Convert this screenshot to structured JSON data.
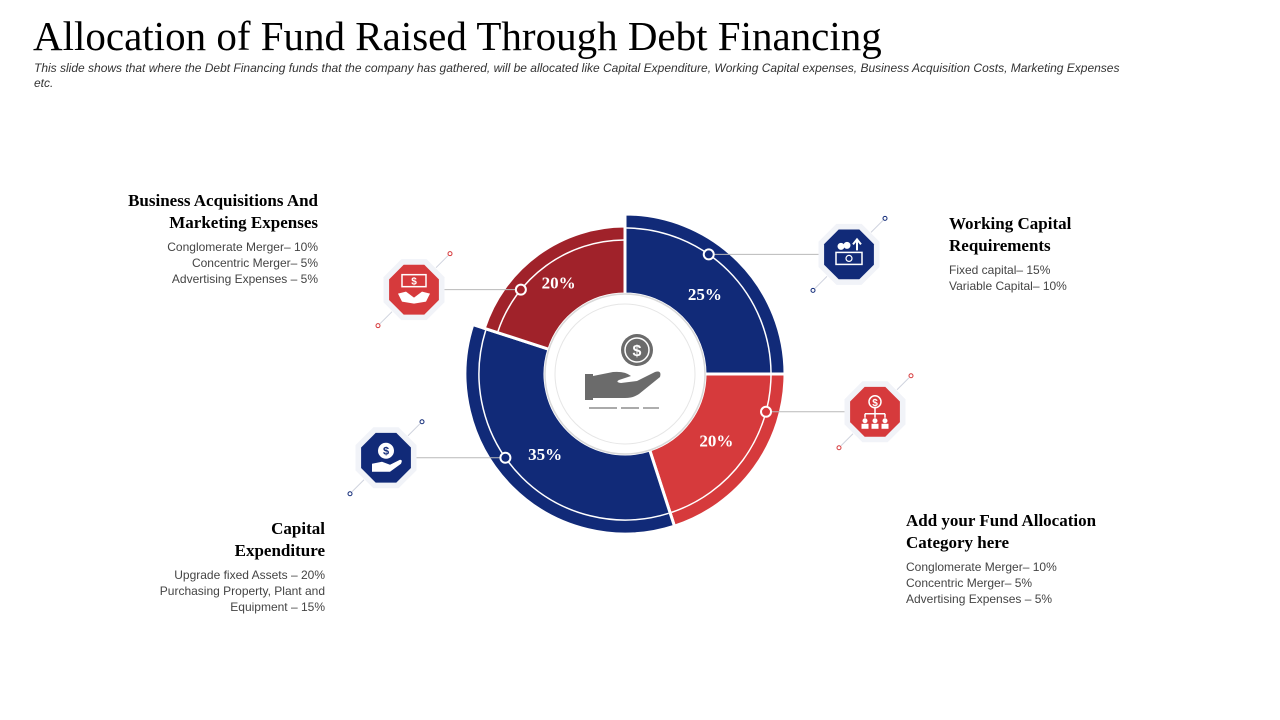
{
  "title": "Allocation of Fund Raised Through Debt Financing",
  "subtitle": "This slide shows that where  the Debt Financing funds that the company has gathered, will be allocated like Capital Expenditure,  Working Capital expenses,  Business Acquisition Costs, Marketing Expenses etc.",
  "colors": {
    "navy": "#112a78",
    "red_dark": "#a0222a",
    "red_light": "#d63a3c",
    "gray": "#6b6b6b"
  },
  "chart_data": {
    "type": "pie",
    "title": "",
    "slices": [
      {
        "label": "Working Capital Requirements",
        "value": 25,
        "value_label": "25%",
        "color": "#112a78",
        "icon": "money-up-icon"
      },
      {
        "label": "Add your Fund Allocation Category here",
        "value": 20,
        "value_label": "20%",
        "color": "#d63a3c",
        "icon": "org-chart-dollar-icon"
      },
      {
        "label": "Capital Expenditure",
        "value": 35,
        "value_label": "35%",
        "color": "#112a78",
        "icon": "hand-coin-icon"
      },
      {
        "label": "Business Acquisitions And Marketing Expenses",
        "value": 20,
        "value_label": "20%",
        "color": "#a0222a",
        "icon": "handshake-dollar-icon"
      }
    ],
    "center_icon": "hand-coin-icon"
  },
  "blocks": {
    "top_left": {
      "head": [
        "Business Acquisitions And",
        "Marketing Expenses"
      ],
      "lines": [
        "Conglomerate Merger– 10%",
        "Concentric Merger– 5%",
        "Advertising Expenses – 5%"
      ]
    },
    "top_right": {
      "head": [
        "Working Capital",
        "Requirements"
      ],
      "lines": [
        "Fixed capital– 15%",
        "Variable Capital– 10%"
      ]
    },
    "bottom_left": {
      "head": [
        "Capital",
        "Expenditure"
      ],
      "lines": [
        "Upgrade fixed Assets – 20%",
        "Purchasing Property, Plant and",
        "Equipment – 15%"
      ]
    },
    "bottom_right": {
      "head": [
        "Add your Fund Allocation",
        "Category here"
      ],
      "lines": [
        "Conglomerate Merger– 10%",
        "Concentric Merger– 5%",
        "Advertising Expenses – 5%"
      ]
    }
  }
}
